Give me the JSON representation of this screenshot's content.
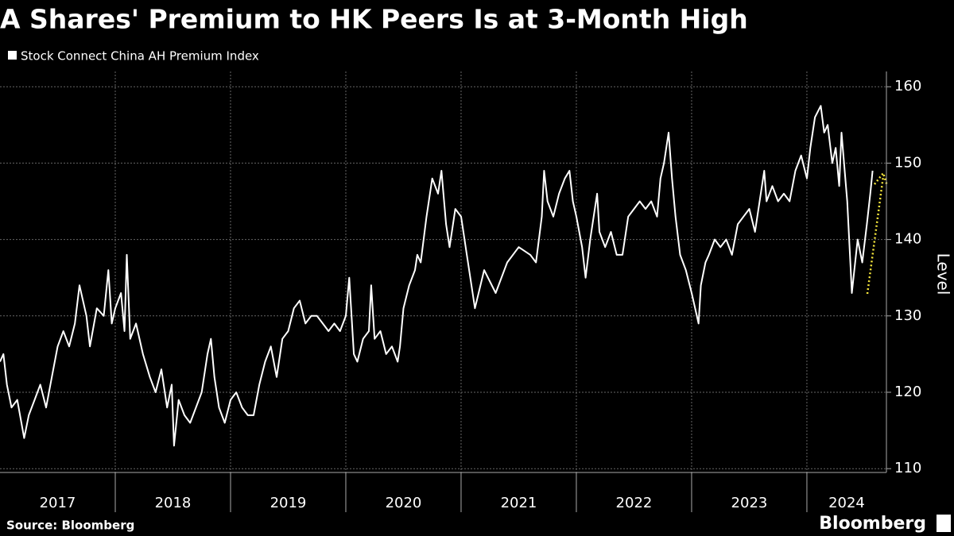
{
  "chart_data": {
    "type": "line",
    "title": "A Shares' Premium to HK Peers Is at 3-Month High",
    "y_label": "Level",
    "source": "Source: Bloomberg",
    "brand": "Bloomberg",
    "x": [
      2017.0,
      2017.03,
      2017.06,
      2017.1,
      2017.15,
      2017.21,
      2017.25,
      2017.3,
      2017.35,
      2017.4,
      2017.45,
      2017.5,
      2017.55,
      2017.6,
      2017.65,
      2017.69,
      2017.75,
      2017.78,
      2017.84,
      2017.9,
      2017.94,
      2017.97,
      2018.0,
      2018.05,
      2018.08,
      2018.1,
      2018.13,
      2018.18,
      2018.24,
      2018.3,
      2018.35,
      2018.4,
      2018.45,
      2018.49,
      2018.51,
      2018.55,
      2018.6,
      2018.65,
      2018.7,
      2018.75,
      2018.8,
      2018.83,
      2018.86,
      2018.9,
      2018.95,
      2019.0,
      2019.05,
      2019.1,
      2019.15,
      2019.2,
      2019.25,
      2019.3,
      2019.35,
      2019.4,
      2019.45,
      2019.5,
      2019.55,
      2019.6,
      2019.65,
      2019.7,
      2019.75,
      2019.8,
      2019.85,
      2019.9,
      2019.95,
      2020.0,
      2020.03,
      2020.07,
      2020.1,
      2020.15,
      2020.2,
      2020.22,
      2020.25,
      2020.3,
      2020.35,
      2020.4,
      2020.45,
      2020.47,
      2020.5,
      2020.55,
      2020.6,
      2020.62,
      2020.65,
      2020.7,
      2020.75,
      2020.8,
      2020.83,
      2020.87,
      2020.9,
      2020.95,
      2021.0,
      2021.05,
      2021.1,
      2021.12,
      2021.2,
      2021.3,
      2021.4,
      2021.5,
      2021.6,
      2021.65,
      2021.7,
      2021.72,
      2021.75,
      2021.8,
      2021.85,
      2021.9,
      2021.94,
      2021.97,
      2022.0,
      2022.05,
      2022.08,
      2022.12,
      2022.18,
      2022.2,
      2022.25,
      2022.3,
      2022.35,
      2022.4,
      2022.45,
      2022.5,
      2022.55,
      2022.6,
      2022.65,
      2022.7,
      2022.73,
      2022.76,
      2022.8,
      2022.83,
      2022.86,
      2022.9,
      2022.95,
      2023.0,
      2023.06,
      2023.08,
      2023.12,
      2023.15,
      2023.2,
      2023.25,
      2023.3,
      2023.35,
      2023.4,
      2023.45,
      2023.5,
      2023.55,
      2023.63,
      2023.65,
      2023.7,
      2023.75,
      2023.8,
      2023.85,
      2023.9,
      2023.95,
      2024.0,
      2024.03,
      2024.07,
      2024.12,
      2024.15,
      2024.18,
      2024.22,
      2024.25,
      2024.28,
      2024.3,
      2024.35,
      2024.38,
      2024.39,
      2024.44,
      2024.48,
      2024.52,
      2024.55,
      2024.57
    ],
    "series": [
      {
        "name": "Stock Connect China AH Premium Index",
        "color": "#ffffff",
        "values": [
          124,
          125,
          121,
          118,
          119,
          114,
          117,
          119,
          121,
          118,
          122,
          126,
          128,
          126,
          129,
          134,
          130,
          126,
          131,
          130,
          136,
          129,
          131,
          133,
          128,
          138,
          127,
          129,
          125,
          122,
          120,
          123,
          118,
          121,
          113,
          119,
          117,
          116,
          118,
          120,
          125,
          127,
          122,
          118,
          116,
          119,
          120,
          118,
          117,
          117,
          121,
          124,
          126,
          122,
          127,
          128,
          131,
          132,
          129,
          130,
          130,
          129,
          128,
          129,
          128,
          130,
          135,
          125,
          124,
          127,
          128,
          134,
          127,
          128,
          125,
          126,
          124,
          126,
          131,
          134,
          136,
          138,
          137,
          143,
          148,
          146,
          149,
          142,
          139,
          144,
          143,
          138,
          133,
          131,
          136,
          133,
          137,
          139,
          138,
          137,
          143,
          149,
          145,
          143,
          146,
          148,
          149,
          145,
          143,
          139,
          135,
          140,
          146,
          141,
          139,
          141,
          138,
          138,
          143,
          144,
          145,
          144,
          145,
          143,
          148,
          150,
          154,
          148,
          143,
          138,
          136,
          133,
          129,
          134,
          137,
          138,
          140,
          139,
          140,
          138,
          142,
          143,
          144,
          141,
          149,
          145,
          147,
          145,
          146,
          145,
          149,
          151,
          148,
          152,
          156,
          157.5,
          154,
          155,
          150,
          152,
          147,
          154,
          145,
          136,
          133,
          140,
          137,
          142,
          146,
          149
        ]
      }
    ],
    "xlim": [
      2017,
      2024.69
    ],
    "xticks": [
      2017,
      2018,
      2019,
      2020,
      2021,
      2022,
      2023,
      2024
    ],
    "ylim": [
      109.5,
      162
    ],
    "yticks": [
      110,
      120,
      130,
      140,
      150,
      160
    ],
    "grid": true
  }
}
